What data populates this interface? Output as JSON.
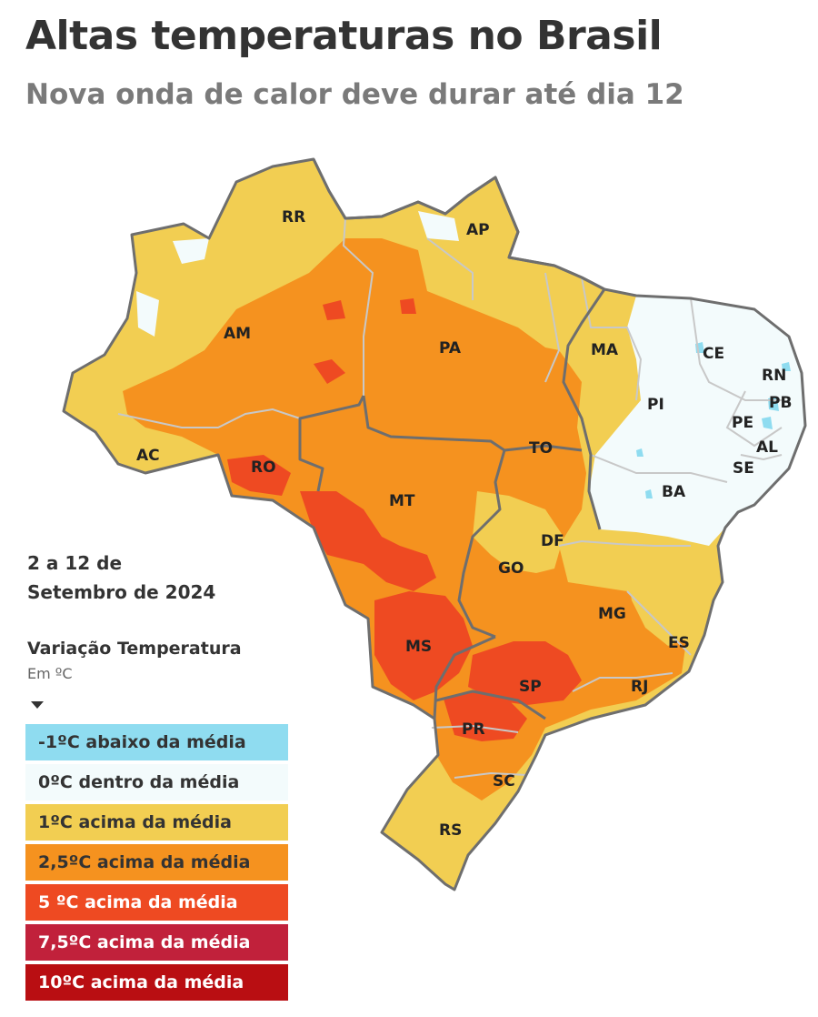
{
  "header": {
    "title": "Altas temperaturas no Brasil",
    "subtitle": "Nova onda de calor deve durar até dia 12"
  },
  "period": {
    "line1": "2 a 12 de",
    "line2": "Setembro de 2024"
  },
  "legend": {
    "title": "Variação Temperatura",
    "unit": "Em ºC",
    "items": [
      {
        "label": "-1ºC abaixo da média",
        "color": "#8fdcf0",
        "text_color": "#333333"
      },
      {
        "label": "0ºC dentro da média",
        "color": "#f3fbfc",
        "text_color": "#333333"
      },
      {
        "label": "1ºC acima da média",
        "color": "#f2ce52",
        "text_color": "#333333"
      },
      {
        "label": "2,5ºC acima da média",
        "color": "#f5921f",
        "text_color": "#333333"
      },
      {
        "label": "5 ºC acima da média",
        "color": "#ee4a22",
        "text_color": "#ffffff"
      },
      {
        "label": "7,5ºC acima da média",
        "color": "#c1213b",
        "text_color": "#ffffff"
      },
      {
        "label": "10ºC acima da média",
        "color": "#b90e12",
        "text_color": "#ffffff"
      }
    ]
  },
  "map": {
    "colors": {
      "above_1": "#f2ce52",
      "above_2_5": "#f5921f",
      "above_5": "#ee4a22",
      "normal": "#f3fbfc",
      "below_1": "#8fdcf0",
      "border": "#6e6e6e",
      "inner_border": "#c8c8c8"
    },
    "states": [
      "RR",
      "AP",
      "AM",
      "PA",
      "MA",
      "CE",
      "RN",
      "PB",
      "PI",
      "PE",
      "AL",
      "SE",
      "AC",
      "RO",
      "TO",
      "MT",
      "BA",
      "DF",
      "GO",
      "MG",
      "ES",
      "MS",
      "SP",
      "RJ",
      "PR",
      "SC",
      "RS"
    ]
  }
}
